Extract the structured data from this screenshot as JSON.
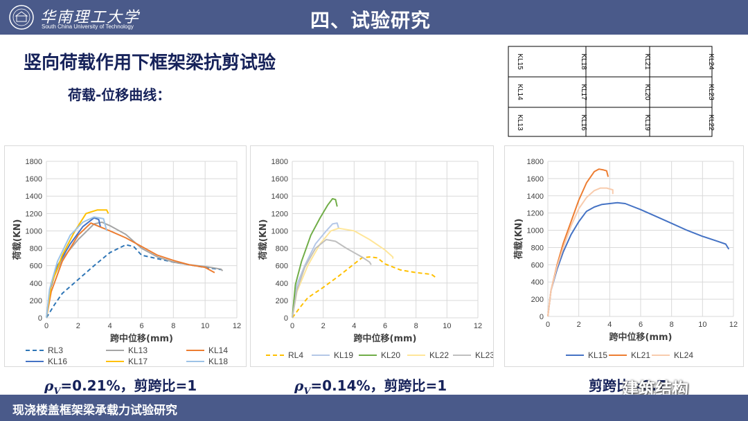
{
  "header": {
    "university_cn": "华南理工大学",
    "university_en": "South China University of Technology",
    "section_title": "四、试验研究",
    "logo_icon": "university-seal-icon"
  },
  "main_title": "竖向荷载作用下框架梁抗剪试验",
  "sub_title": "荷载-位移曲线：",
  "beam_layout": {
    "rows": [
      [
        "KL15",
        "KL18",
        "KL21",
        "KL24"
      ],
      [
        "KL14",
        "KL17",
        "KL20",
        "KL23"
      ],
      [
        "KL13",
        "KL16",
        "KL19",
        "KL22"
      ]
    ]
  },
  "chart_data": [
    {
      "type": "line",
      "xlabel": "跨中位移(mm)",
      "ylabel": "荷载(KN)",
      "xlim": [
        0,
        12
      ],
      "ylim": [
        0,
        1800
      ],
      "xticks": [
        0,
        2,
        4,
        6,
        8,
        10,
        12
      ],
      "yticks": [
        0,
        200,
        400,
        600,
        800,
        1000,
        1200,
        1400,
        1600,
        1800
      ],
      "grid": true,
      "legend_position": "bottom",
      "series": [
        {
          "name": "RL3",
          "color": "#2e75b6",
          "dashed": true,
          "points": [
            [
              0,
              0
            ],
            [
              0.5,
              150
            ],
            [
              1,
              280
            ],
            [
              2,
              440
            ],
            [
              3,
              600
            ],
            [
              4,
              750
            ],
            [
              5,
              840
            ],
            [
              5.5,
              820
            ],
            [
              6,
              720
            ],
            [
              7,
              680
            ],
            [
              8,
              640
            ],
            [
              9,
              610
            ],
            [
              10,
              580
            ],
            [
              11,
              555
            ]
          ]
        },
        {
          "name": "KL13",
          "color": "#a5a5a5",
          "dashed": false,
          "points": [
            [
              0,
              0
            ],
            [
              0.3,
              400
            ],
            [
              1,
              680
            ],
            [
              2,
              900
            ],
            [
              3,
              1080
            ],
            [
              3.5,
              1100
            ],
            [
              4,
              1060
            ],
            [
              5,
              960
            ],
            [
              6,
              800
            ],
            [
              7,
              700
            ],
            [
              8,
              640
            ],
            [
              9,
              610
            ],
            [
              10,
              590
            ],
            [
              11,
              560
            ],
            [
              11.1,
              540
            ]
          ]
        },
        {
          "name": "KL14",
          "color": "#ed7d31",
          "dashed": false,
          "points": [
            [
              0,
              0
            ],
            [
              0.3,
              300
            ],
            [
              1,
              650
            ],
            [
              2,
              950
            ],
            [
              2.8,
              1090
            ],
            [
              3.2,
              1060
            ],
            [
              4,
              1000
            ],
            [
              5,
              920
            ],
            [
              6,
              820
            ],
            [
              7,
              720
            ],
            [
              8,
              660
            ],
            [
              9,
              610
            ],
            [
              10,
              580
            ],
            [
              10.6,
              520
            ]
          ]
        },
        {
          "name": "KL16",
          "color": "#4472c4",
          "dashed": false,
          "points": [
            [
              0,
              0
            ],
            [
              0.2,
              300
            ],
            [
              0.7,
              600
            ],
            [
              1.5,
              850
            ],
            [
              2.3,
              1050
            ],
            [
              3,
              1150
            ],
            [
              3.3,
              1130
            ],
            [
              3.4,
              1050
            ]
          ]
        },
        {
          "name": "KL17",
          "color": "#ffc000",
          "dashed": false,
          "points": [
            [
              0,
              0
            ],
            [
              0.3,
              380
            ],
            [
              1,
              720
            ],
            [
              1.8,
              1000
            ],
            [
              2.5,
              1200
            ],
            [
              3.2,
              1240
            ],
            [
              3.8,
              1240
            ],
            [
              3.9,
              1200
            ]
          ]
        },
        {
          "name": "KL18",
          "color": "#9dc3e6",
          "dashed": false,
          "points": [
            [
              0,
              0
            ],
            [
              0.2,
              330
            ],
            [
              0.7,
              650
            ],
            [
              1.5,
              950
            ],
            [
              2.3,
              1100
            ],
            [
              3,
              1160
            ],
            [
              3.6,
              1140
            ],
            [
              3.8,
              1000
            ]
          ]
        }
      ]
    },
    {
      "type": "line",
      "xlabel": "跨中位移(mm)",
      "ylabel": "荷载(KN)",
      "xlim": [
        0,
        12
      ],
      "ylim": [
        0,
        1800
      ],
      "xticks": [
        0,
        2,
        4,
        6,
        8,
        10,
        12
      ],
      "yticks": [
        0,
        200,
        400,
        600,
        800,
        1000,
        1200,
        1400,
        1600,
        1800
      ],
      "grid": true,
      "legend_position": "bottom",
      "series": [
        {
          "name": "RL4",
          "color": "#ffc000",
          "dashed": true,
          "points": [
            [
              0,
              0
            ],
            [
              0.5,
              120
            ],
            [
              1,
              230
            ],
            [
              2,
              350
            ],
            [
              3,
              480
            ],
            [
              4,
              620
            ],
            [
              4.5,
              690
            ],
            [
              5,
              700
            ],
            [
              5.5,
              690
            ],
            [
              6,
              620
            ],
            [
              7,
              550
            ],
            [
              8,
              520
            ],
            [
              9,
              500
            ],
            [
              9.3,
              460
            ]
          ]
        },
        {
          "name": "KL19",
          "color": "#b4c7e7",
          "dashed": false,
          "points": [
            [
              0,
              0
            ],
            [
              0.3,
              380
            ],
            [
              0.8,
              600
            ],
            [
              1.5,
              850
            ],
            [
              2.2,
              1000
            ],
            [
              2.6,
              1080
            ],
            [
              2.9,
              1090
            ],
            [
              3,
              1030
            ]
          ]
        },
        {
          "name": "KL20",
          "color": "#70ad47",
          "dashed": false,
          "points": [
            [
              0,
              0
            ],
            [
              0.2,
              380
            ],
            [
              0.6,
              650
            ],
            [
              1.2,
              950
            ],
            [
              1.8,
              1150
            ],
            [
              2.3,
              1300
            ],
            [
              2.6,
              1370
            ],
            [
              2.8,
              1360
            ],
            [
              2.9,
              1280
            ]
          ]
        },
        {
          "name": "KL22",
          "color": "#ffe699",
          "dashed": false,
          "points": [
            [
              0,
              0
            ],
            [
              0.3,
              300
            ],
            [
              1,
              600
            ],
            [
              1.8,
              850
            ],
            [
              2.5,
              1000
            ],
            [
              3,
              1030
            ],
            [
              4,
              1000
            ],
            [
              5,
              900
            ],
            [
              6,
              780
            ],
            [
              6.5,
              700
            ],
            [
              6.5,
              680
            ]
          ]
        },
        {
          "name": "KL23",
          "color": "#bfbfbf",
          "dashed": false,
          "points": [
            [
              0,
              0
            ],
            [
              0.3,
              320
            ],
            [
              0.8,
              580
            ],
            [
              1.5,
              800
            ],
            [
              2.2,
              900
            ],
            [
              2.8,
              880
            ],
            [
              3.5,
              800
            ],
            [
              4.5,
              700
            ],
            [
              5,
              640
            ],
            [
              5.1,
              610
            ]
          ]
        }
      ]
    },
    {
      "type": "line",
      "xlabel": "跨中位移(mm)",
      "ylabel": "荷载(KN)",
      "xlim": [
        0,
        12
      ],
      "ylim": [
        0,
        1800
      ],
      "xticks": [
        0,
        2,
        4,
        6,
        8,
        10,
        12
      ],
      "yticks": [
        0,
        200,
        400,
        600,
        800,
        1000,
        1200,
        1400,
        1600,
        1800
      ],
      "grid": true,
      "legend_position": "bottom",
      "series": [
        {
          "name": "KL15",
          "color": "#4472c4",
          "dashed": false,
          "points": [
            [
              0,
              0
            ],
            [
              0.2,
              300
            ],
            [
              0.6,
              550
            ],
            [
              1,
              750
            ],
            [
              1.5,
              950
            ],
            [
              2,
              1100
            ],
            [
              2.5,
              1220
            ],
            [
              3,
              1270
            ],
            [
              3.5,
              1300
            ],
            [
              4,
              1310
            ],
            [
              4.5,
              1320
            ],
            [
              5,
              1310
            ],
            [
              6,
              1240
            ],
            [
              7,
              1160
            ],
            [
              8,
              1080
            ],
            [
              9,
              1000
            ],
            [
              10,
              930
            ],
            [
              11,
              870
            ],
            [
              11.5,
              840
            ],
            [
              11.7,
              780
            ]
          ]
        },
        {
          "name": "KL21",
          "color": "#ed7d31",
          "dashed": false,
          "points": [
            [
              0,
              0
            ],
            [
              0.2,
              300
            ],
            [
              0.6,
              600
            ],
            [
              1,
              850
            ],
            [
              1.5,
              1100
            ],
            [
              2,
              1350
            ],
            [
              2.5,
              1550
            ],
            [
              3,
              1680
            ],
            [
              3.3,
              1710
            ],
            [
              3.6,
              1700
            ],
            [
              3.8,
              1690
            ],
            [
              3.9,
              1620
            ]
          ]
        },
        {
          "name": "KL24",
          "color": "#f8cbad",
          "dashed": false,
          "points": [
            [
              0,
              0
            ],
            [
              0.2,
              300
            ],
            [
              0.6,
              580
            ],
            [
              1,
              800
            ],
            [
              1.5,
              1050
            ],
            [
              2,
              1250
            ],
            [
              2.5,
              1380
            ],
            [
              3,
              1460
            ],
            [
              3.4,
              1490
            ],
            [
              3.8,
              1490
            ],
            [
              4.2,
              1470
            ],
            [
              4.2,
              1420
            ]
          ]
        }
      ]
    }
  ],
  "captions": [
    {
      "rho_symbol": "ρ",
      "subscript": "V",
      "text": "=0.21%，剪跨比=1"
    },
    {
      "rho_symbol": "ρ",
      "subscript": "V",
      "text": "=0.14%，剪跨比=1"
    },
    {
      "text": "剪跨比=0.7"
    }
  ],
  "watermark": "建筑结构",
  "footer": "现浇楼盖框架梁承载力试验研究"
}
